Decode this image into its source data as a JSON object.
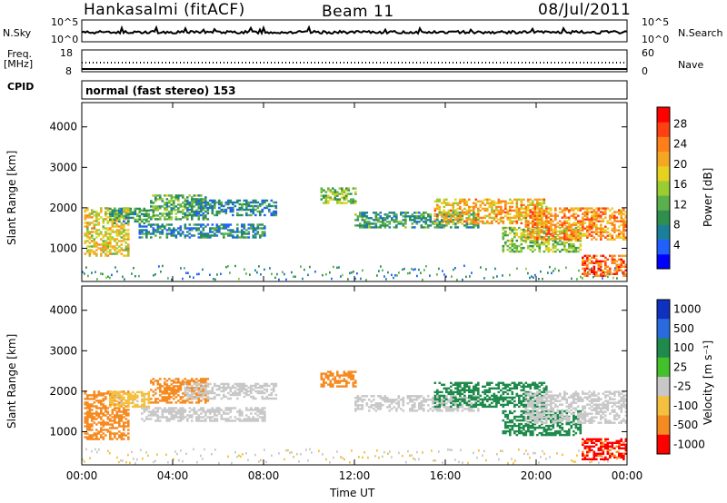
{
  "header": {
    "station": "Hankasalmi (fitACF)",
    "beam": "Beam 11",
    "date": "08/Jul/2011"
  },
  "status_panels": {
    "nsky_label": "N.Sky",
    "nsearch_label": "N.Search",
    "noise_ticks": [
      "10^5",
      "10^0"
    ],
    "freq_label_top": "Freq.",
    "freq_label_unit": "[MHz]",
    "freq_ticks": [
      "18",
      "8"
    ],
    "nave_label": "Nave",
    "nave_ticks": [
      "60",
      "0"
    ],
    "cpid_label": "CPID",
    "cpid_text": "normal (fast stereo) 153"
  },
  "chart_data": [
    {
      "type": "heatmap",
      "name": "power",
      "xlabel": "Time UT",
      "ylabel": "Slant Range [km]",
      "x_ticks": [
        "00:00",
        "04:00",
        "08:00",
        "12:00",
        "16:00",
        "20:00",
        "00:00"
      ],
      "xlim_hours": [
        0,
        24
      ],
      "ylim": [
        180,
        4600
      ],
      "y_ticks": [
        1000,
        2000,
        3000,
        4000
      ],
      "colorbar": {
        "title": "Power [dB]",
        "ticks": [
          "4",
          "8",
          "12",
          "16",
          "20",
          "24",
          "28"
        ],
        "colors": [
          "#0000ff",
          "#2060ff",
          "#1c7f9a",
          "#2f8f4f",
          "#5ab04a",
          "#9acd32",
          "#e6d020",
          "#f5a623",
          "#ff7f1a",
          "#ff4010",
          "#ff0000"
        ],
        "range": [
          0,
          30
        ]
      }
    },
    {
      "type": "heatmap",
      "name": "velocity",
      "xlabel": "Time UT",
      "ylabel": "Slant Range [km]",
      "x_ticks": [
        "00:00",
        "04:00",
        "08:00",
        "12:00",
        "16:00",
        "20:00",
        "00:00"
      ],
      "xlim_hours": [
        0,
        24
      ],
      "ylim": [
        180,
        4600
      ],
      "y_ticks": [
        1000,
        2000,
        3000,
        4000
      ],
      "colorbar": {
        "title": "Velocity [m s⁻¹]",
        "ticks": [
          "1000",
          "500",
          "100",
          "25",
          "-25",
          "-100",
          "-500",
          "-1000"
        ],
        "colors": [
          "#1030c0",
          "#2a6adf",
          "#1f8a4c",
          "#44c02a",
          "#c8c8c8",
          "#f5c040",
          "#f58a20",
          "#ff0000"
        ]
      }
    }
  ],
  "echo_regions": [
    {
      "t0": 0.1,
      "t1": 2.1,
      "r0": 800,
      "r1": 2000,
      "power": 18,
      "vel": -300
    },
    {
      "t0": 1.2,
      "t1": 3.0,
      "r0": 1600,
      "r1": 2000,
      "power": 10,
      "vel": -40
    },
    {
      "t0": 3.0,
      "t1": 5.5,
      "r0": 1700,
      "r1": 2300,
      "power": 12,
      "vel": -150
    },
    {
      "t0": 4.5,
      "t1": 8.5,
      "r0": 1800,
      "r1": 2200,
      "power": 8,
      "vel": 0
    },
    {
      "t0": 2.5,
      "t1": 8.0,
      "r0": 1250,
      "r1": 1600,
      "power": 8,
      "vel": 0
    },
    {
      "t0": 10.5,
      "t1": 12.0,
      "r0": 2100,
      "r1": 2500,
      "power": 14,
      "vel": -200
    },
    {
      "t0": 12.0,
      "t1": 17.5,
      "r0": 1500,
      "r1": 1900,
      "power": 10,
      "vel": 0
    },
    {
      "t0": 15.5,
      "t1": 20.5,
      "r0": 1600,
      "r1": 2200,
      "power": 20,
      "vel": 150
    },
    {
      "t0": 18.5,
      "t1": 22.0,
      "r0": 900,
      "r1": 1500,
      "power": 14,
      "vel": 200
    },
    {
      "t0": 19.5,
      "t1": 24.0,
      "r0": 1200,
      "r1": 2000,
      "power": 22,
      "vel": 0
    },
    {
      "t0": 22.0,
      "t1": 24.0,
      "r0": 300,
      "r1": 800,
      "power": 24,
      "vel": -600
    }
  ]
}
